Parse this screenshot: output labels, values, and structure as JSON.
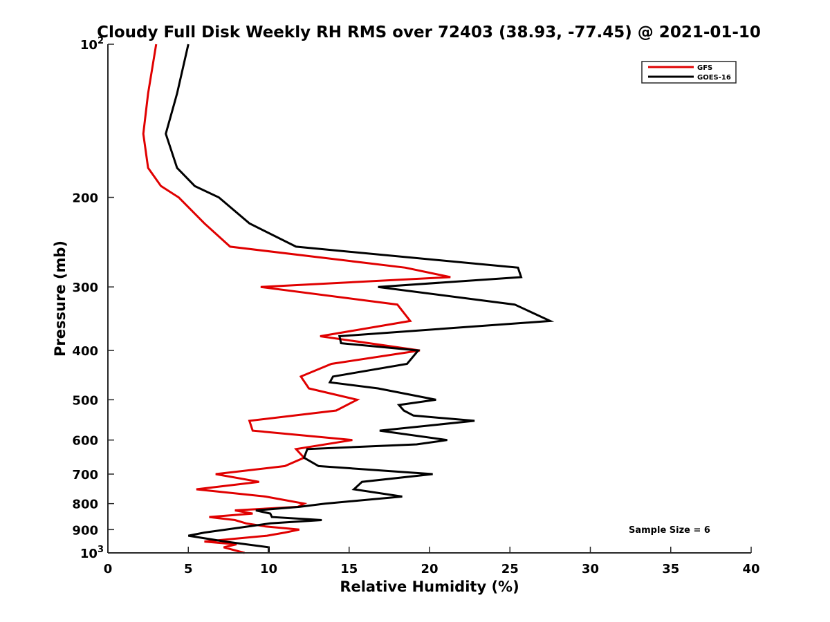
{
  "chart_data": {
    "type": "line",
    "title": "Cloudy Full Disk Weekly RH RMS over 72403 (38.93, -77.45) @ 2021-01-10",
    "xlabel": "Relative Humidity (%)",
    "ylabel": "Pressure (mb)",
    "xlim": [
      0,
      40
    ],
    "ylim": [
      100,
      1000
    ],
    "yscale": "log",
    "y_reversed": true,
    "grid": false,
    "legend_position": "top-right",
    "x_ticks": [
      "0",
      "5",
      "10",
      "15",
      "20",
      "25",
      "30",
      "35",
      "40"
    ],
    "y_ticks": [
      {
        "value": 100,
        "label": "10",
        "exp": "2"
      },
      {
        "value": 200,
        "label": "200"
      },
      {
        "value": 300,
        "label": "300"
      },
      {
        "value": 400,
        "label": "400"
      },
      {
        "value": 500,
        "label": "500"
      },
      {
        "value": 600,
        "label": "600"
      },
      {
        "value": 700,
        "label": "700"
      },
      {
        "value": 800,
        "label": "800"
      },
      {
        "value": 900,
        "label": "900"
      },
      {
        "value": 1000,
        "label": "10",
        "exp": "3"
      }
    ],
    "annotation": "Sample Size = 6",
    "series": [
      {
        "name": "GFS",
        "color": "#e00000",
        "points": [
          [
            3.0,
            100
          ],
          [
            2.5,
            125
          ],
          [
            2.2,
            150
          ],
          [
            2.5,
            175
          ],
          [
            3.3,
            190
          ],
          [
            4.4,
            200
          ],
          [
            6.0,
            225
          ],
          [
            7.6,
            250
          ],
          [
            18.5,
            275
          ],
          [
            21.3,
            287
          ],
          [
            9.5,
            300
          ],
          [
            18.0,
            325
          ],
          [
            18.8,
            350
          ],
          [
            13.2,
            375
          ],
          [
            19.4,
            400
          ],
          [
            13.9,
            425
          ],
          [
            12.0,
            450
          ],
          [
            12.5,
            475
          ],
          [
            15.5,
            500
          ],
          [
            14.2,
            525
          ],
          [
            8.8,
            550
          ],
          [
            9.0,
            575
          ],
          [
            15.2,
            600
          ],
          [
            11.7,
            625
          ],
          [
            12.2,
            650
          ],
          [
            11.0,
            675
          ],
          [
            6.7,
            700
          ],
          [
            9.4,
            725
          ],
          [
            5.5,
            750
          ],
          [
            9.8,
            775
          ],
          [
            12.2,
            800
          ],
          [
            11.8,
            812
          ],
          [
            7.9,
            825
          ],
          [
            9.0,
            837
          ],
          [
            6.3,
            850
          ],
          [
            7.9,
            862
          ],
          [
            8.6,
            875
          ],
          [
            9.8,
            887
          ],
          [
            11.9,
            900
          ],
          [
            11.0,
            912
          ],
          [
            9.9,
            925
          ],
          [
            6.0,
            950
          ],
          [
            8.0,
            962
          ],
          [
            7.2,
            975
          ],
          [
            8.5,
            1000
          ]
        ]
      },
      {
        "name": "GOES-16",
        "color": "#000000",
        "points": [
          [
            5.0,
            100
          ],
          [
            4.3,
            125
          ],
          [
            3.6,
            150
          ],
          [
            4.3,
            175
          ],
          [
            5.4,
            190
          ],
          [
            6.9,
            200
          ],
          [
            8.8,
            225
          ],
          [
            11.7,
            250
          ],
          [
            25.5,
            275
          ],
          [
            25.7,
            287
          ],
          [
            16.8,
            300
          ],
          [
            25.3,
            325
          ],
          [
            27.5,
            350
          ],
          [
            14.4,
            375
          ],
          [
            14.5,
            387
          ],
          [
            19.3,
            400
          ],
          [
            18.6,
            425
          ],
          [
            14.0,
            450
          ],
          [
            13.8,
            462
          ],
          [
            16.8,
            475
          ],
          [
            20.4,
            500
          ],
          [
            18.1,
            512
          ],
          [
            18.4,
            525
          ],
          [
            19.0,
            537
          ],
          [
            22.8,
            550
          ],
          [
            16.9,
            575
          ],
          [
            21.1,
            600
          ],
          [
            19.2,
            612
          ],
          [
            12.4,
            625
          ],
          [
            12.2,
            650
          ],
          [
            13.1,
            675
          ],
          [
            20.2,
            700
          ],
          [
            15.8,
            725
          ],
          [
            15.3,
            750
          ],
          [
            18.3,
            775
          ],
          [
            13.5,
            800
          ],
          [
            11.9,
            812
          ],
          [
            9.2,
            825
          ],
          [
            10.1,
            837
          ],
          [
            10.2,
            850
          ],
          [
            13.3,
            862
          ],
          [
            10.1,
            875
          ],
          [
            6.0,
            912
          ],
          [
            5.0,
            925
          ],
          [
            7.3,
            950
          ],
          [
            10.0,
            975
          ],
          [
            10.0,
            1000
          ]
        ]
      }
    ]
  }
}
